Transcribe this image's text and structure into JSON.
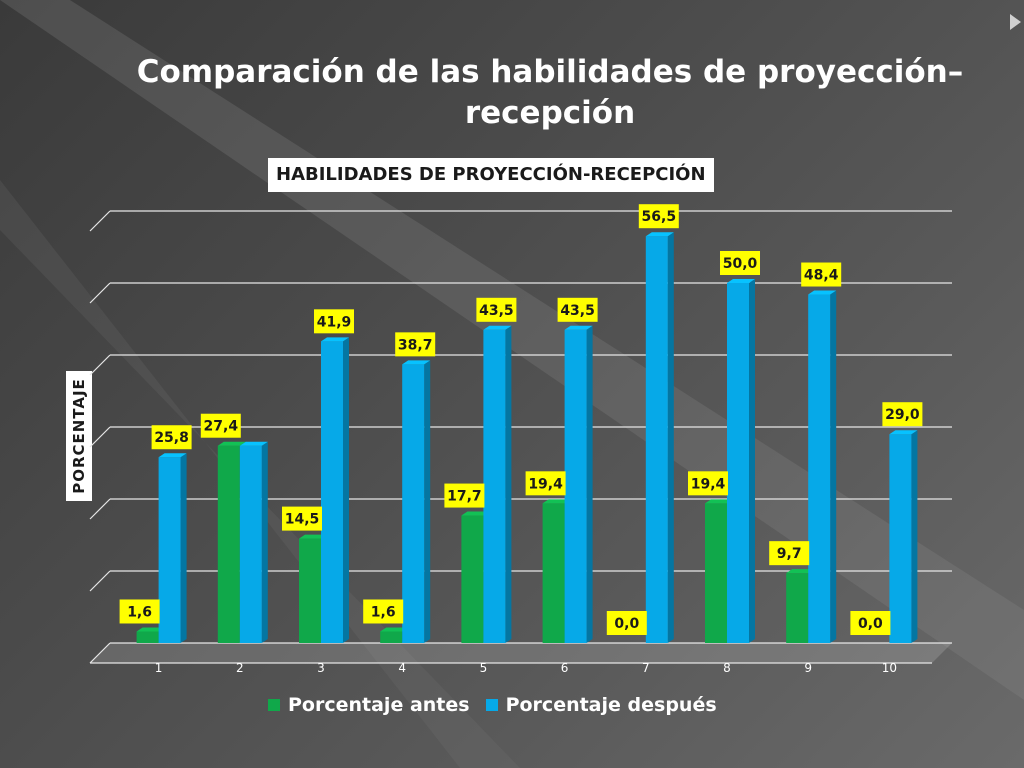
{
  "slide": {
    "title": "Comparación de las habilidades de proyección–recepción"
  },
  "colors": {
    "antes": "#10a84a",
    "despues": "#06a9e8",
    "label_bg": "#ffff00",
    "gridline": "#e6e6e6"
  },
  "chart_data": {
    "type": "bar",
    "title": "HABILIDADES DE PROYECCIÓN-RECEPCIÓN",
    "xlabel": "",
    "ylabel": "PORCENTAJE",
    "categories": [
      "1",
      "2",
      "3",
      "4",
      "5",
      "6",
      "7",
      "8",
      "9",
      "10"
    ],
    "series": [
      {
        "name": "Porcentaje antes",
        "values": [
          1.6,
          27.4,
          14.5,
          1.6,
          17.7,
          19.4,
          0.0,
          19.4,
          9.7,
          0.0
        ],
        "labels": [
          "1,6",
          "27,4",
          "14,5",
          "1,6",
          "17,7",
          "19,4",
          "0,0",
          "19,4",
          "9,7",
          "0,0"
        ]
      },
      {
        "name": "Porcentaje después",
        "values": [
          25.8,
          27.4,
          41.9,
          38.7,
          43.5,
          43.5,
          56.5,
          50.0,
          48.4,
          29.0
        ],
        "labels": [
          "25,8",
          "",
          "41,9",
          "38,7",
          "43,5",
          "43,5",
          "56,5",
          "50,0",
          "48,4",
          "29,0"
        ]
      }
    ],
    "ylim": [
      0,
      60
    ],
    "grid": true,
    "legend_position": "bottom",
    "three_d": true
  }
}
